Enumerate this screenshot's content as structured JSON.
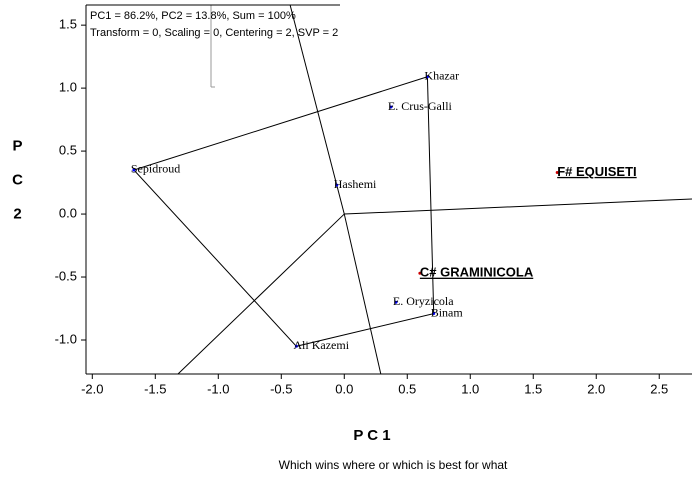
{
  "chart_data": {
    "type": "biplot",
    "annotations": [
      "PC1 = 86.2%, PC2 = 13.8%, Sum = 100%",
      "Transform = 0, Scaling = 0, Centering = 2, SVP = 2"
    ],
    "xlabel": "P C 1",
    "ylabel": "P C 2",
    "caption": "Which wins where or which is best for what",
    "xlim": [
      -2.05,
      2.76
    ],
    "ylim": [
      -1.27,
      1.66
    ],
    "xticks": [
      {
        "value": -2,
        "label": "-2.0"
      },
      -1.5,
      {
        "value": -1,
        "label": "-1.0"
      },
      -0.5,
      {
        "value": 0,
        "label": "0.0"
      },
      0.5,
      {
        "value": 1,
        "label": "1.0"
      },
      1.5,
      {
        "value": 2,
        "label": "2.0"
      },
      2.5
    ],
    "yticks": [
      1.5,
      {
        "value": 1,
        "label": "1.0"
      },
      0.5,
      {
        "value": 0,
        "label": "0.0"
      },
      -0.5,
      {
        "value": -1,
        "label": "-1.0"
      }
    ],
    "genotype_color": "#0000ff",
    "genotypes": [
      {
        "name": "Khazar",
        "x": 0.66,
        "y": 1.09
      },
      {
        "name": "E. Crus-Galli",
        "x": 0.37,
        "y": 0.85
      },
      {
        "name": "Sepidroud",
        "x": -1.67,
        "y": 0.35
      },
      {
        "name": "Hashemi",
        "x": -0.06,
        "y": 0.23
      },
      {
        "name": "E. Oryzicola",
        "x": 0.41,
        "y": -0.7
      },
      {
        "name": "Binam",
        "x": 0.71,
        "y": -0.79
      },
      {
        "name": "Ali Kazemi",
        "x": -0.38,
        "y": -1.05
      }
    ],
    "environment_color": "#cc0000",
    "environments": [
      {
        "name": "F# EQUISETI",
        "x": 1.69,
        "y": 0.33
      },
      {
        "name": "C# GRAMINICOLA",
        "x": 0.6,
        "y": -0.47
      }
    ],
    "polygon": [
      0,
      5,
      6,
      2
    ],
    "rays": [
      [
        2.76,
        0.12
      ],
      [
        -0.43,
        1.66
      ],
      [
        0.29,
        -1.27
      ],
      [
        -1.32,
        -1.27
      ]
    ]
  }
}
